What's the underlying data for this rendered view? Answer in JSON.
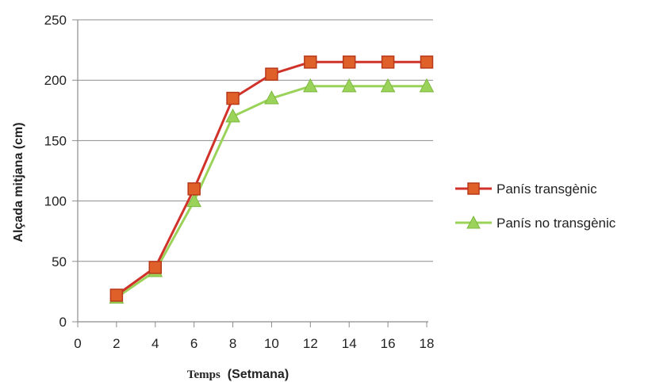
{
  "chart_data": {
    "type": "line",
    "title": "",
    "xlabel_parts": [
      "Temps",
      "(Setmana)"
    ],
    "ylabel": "Alçada mitjana (cm)",
    "xlim": [
      0,
      18
    ],
    "ylim": [
      0,
      250
    ],
    "x_ticks": [
      "0",
      "2",
      "4",
      "6",
      "8",
      "10",
      "12",
      "14",
      "16",
      "18"
    ],
    "y_ticks": [
      "0",
      "50",
      "100",
      "150",
      "200",
      "250"
    ],
    "grid": "horizontal",
    "legend_position": "right",
    "series": [
      {
        "name": "Panís transgènic",
        "marker": "square",
        "line_color": "#d0322a",
        "marker_fill": "#e0602a",
        "marker_edge": "#b83a1a",
        "x": [
          2,
          4,
          6,
          8,
          10,
          12,
          14,
          16,
          18
        ],
        "values": [
          22,
          45,
          110,
          185,
          205,
          215,
          215,
          215,
          215
        ]
      },
      {
        "name": "Panís no transgènic",
        "marker": "triangle",
        "line_color": "#9bd35a",
        "marker_fill": "#9bd35a",
        "marker_edge": "#7cb83e",
        "x": [
          2,
          4,
          6,
          8,
          10,
          12,
          14,
          16,
          18
        ],
        "values": [
          20,
          42,
          100,
          170,
          185,
          195,
          195,
          195,
          195
        ]
      }
    ]
  }
}
